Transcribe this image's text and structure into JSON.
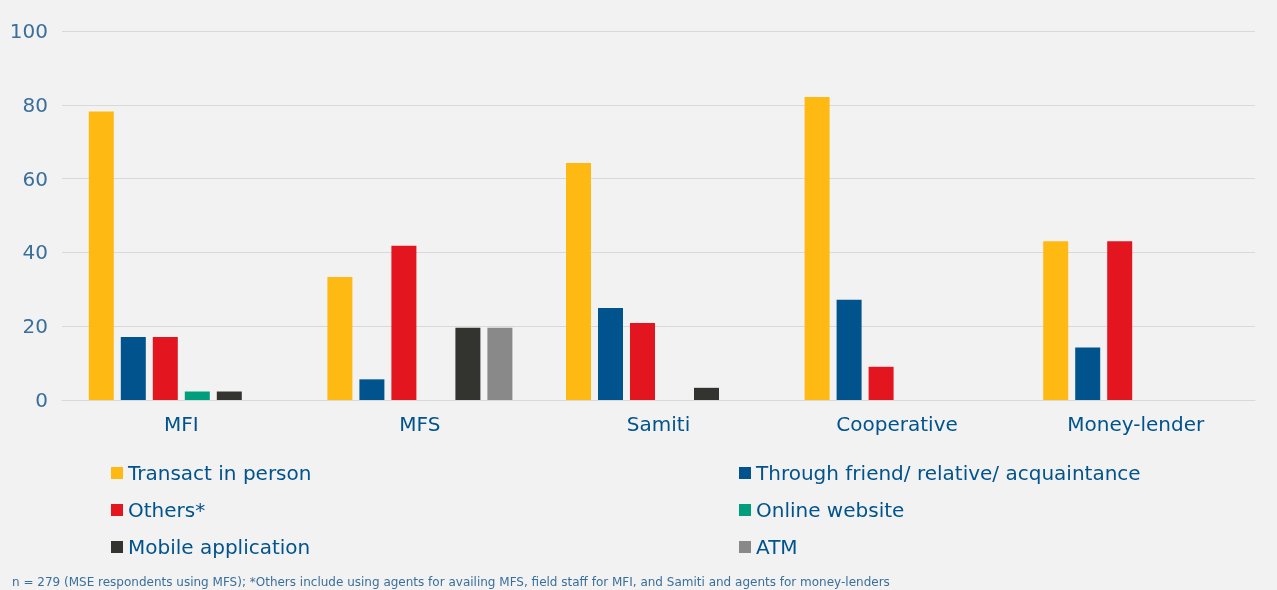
{
  "chart_data": {
    "type": "bar",
    "categories": [
      "MFI",
      "MFS",
      "Samiti",
      "Cooperative",
      "Money-lender"
    ],
    "series": [
      {
        "name": "Transact in person",
        "color": "#ffb913",
        "values": [
          78.2,
          33.3,
          64.2,
          82.1,
          43.0
        ]
      },
      {
        "name": "Through friend/ relative/ acquaintance",
        "color": "#00538c",
        "values": [
          17.1,
          5.6,
          24.9,
          27.2,
          14.2
        ]
      },
      {
        "name": "Others*",
        "color": "#e3151f",
        "values": [
          17.1,
          41.8,
          20.9,
          9.0,
          43.0
        ]
      },
      {
        "name": "Online website",
        "color": "#009e7c",
        "values": [
          2.3,
          null,
          null,
          null,
          null
        ]
      },
      {
        "name": "Mobile application",
        "color": "#33342f",
        "values": [
          2.3,
          19.6,
          3.3,
          null,
          null
        ]
      },
      {
        "name": "ATM",
        "color": "#898989",
        "values": [
          null,
          19.6,
          null,
          null,
          null
        ]
      }
    ],
    "ylim": [
      0,
      100
    ],
    "yticks": [
      0,
      20,
      40,
      60,
      80,
      100
    ],
    "grid": "y",
    "legend": "bottom",
    "annotations": [
      "n = 279 (MSE respondents using MFS); *Others include using agents for availing MFS, field staff for MFI, and Samiti and agents for money-lenders"
    ]
  }
}
